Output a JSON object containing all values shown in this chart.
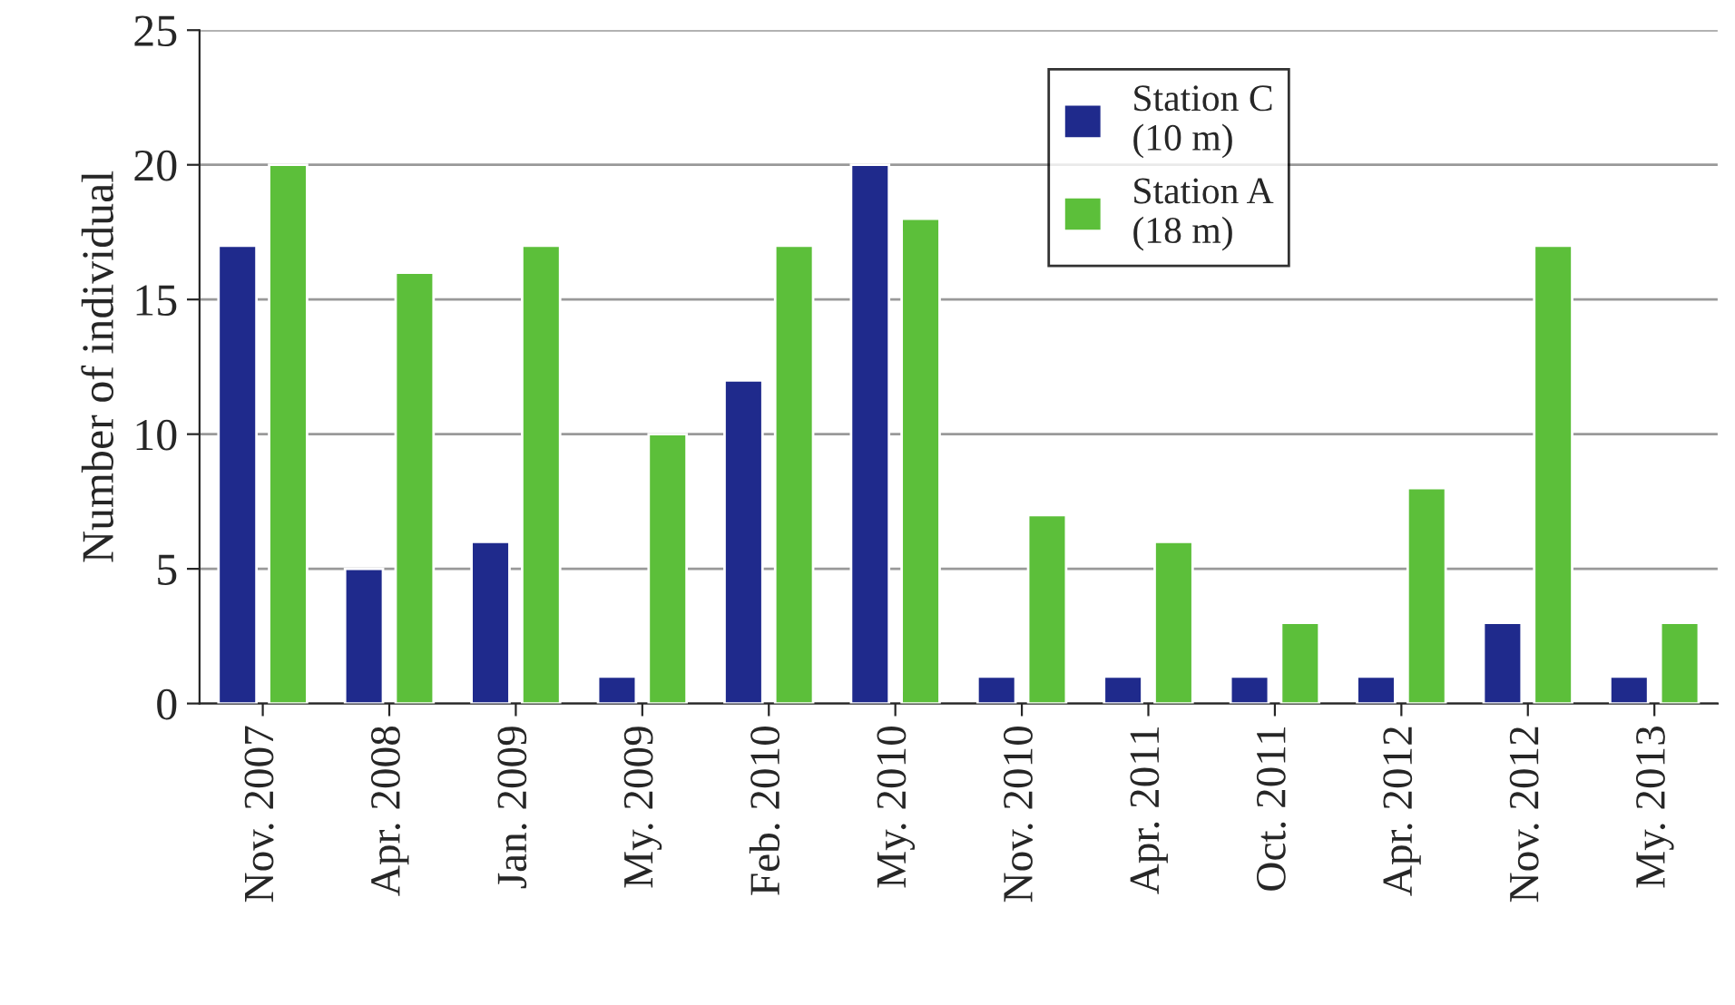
{
  "chart_data": {
    "type": "bar",
    "ylabel": "Number of individual",
    "categories": [
      "Nov. 2007",
      "Apr. 2008",
      "Jan. 2009",
      "My. 2009",
      "Feb. 2010",
      "My. 2010",
      "Nov. 2010",
      "Apr. 2011",
      "Oct. 2011",
      "Apr. 2012",
      "Nov. 2012",
      "My. 2013"
    ],
    "series": [
      {
        "name": "Station C\n(10 m)",
        "color": "#1f2a8c",
        "values": [
          17,
          5,
          6,
          1,
          12,
          20,
          1,
          1,
          1,
          1,
          3,
          1
        ]
      },
      {
        "name": "Station A\n(18 m)",
        "color": "#5cbf3a",
        "values": [
          20,
          16,
          17,
          10,
          17,
          18,
          7,
          6,
          3,
          8,
          17,
          3
        ]
      }
    ],
    "ylim": [
      0,
      25
    ],
    "yticks": [
      0,
      5,
      10,
      15,
      20,
      25
    ],
    "grid": "y",
    "legend": "top right"
  }
}
